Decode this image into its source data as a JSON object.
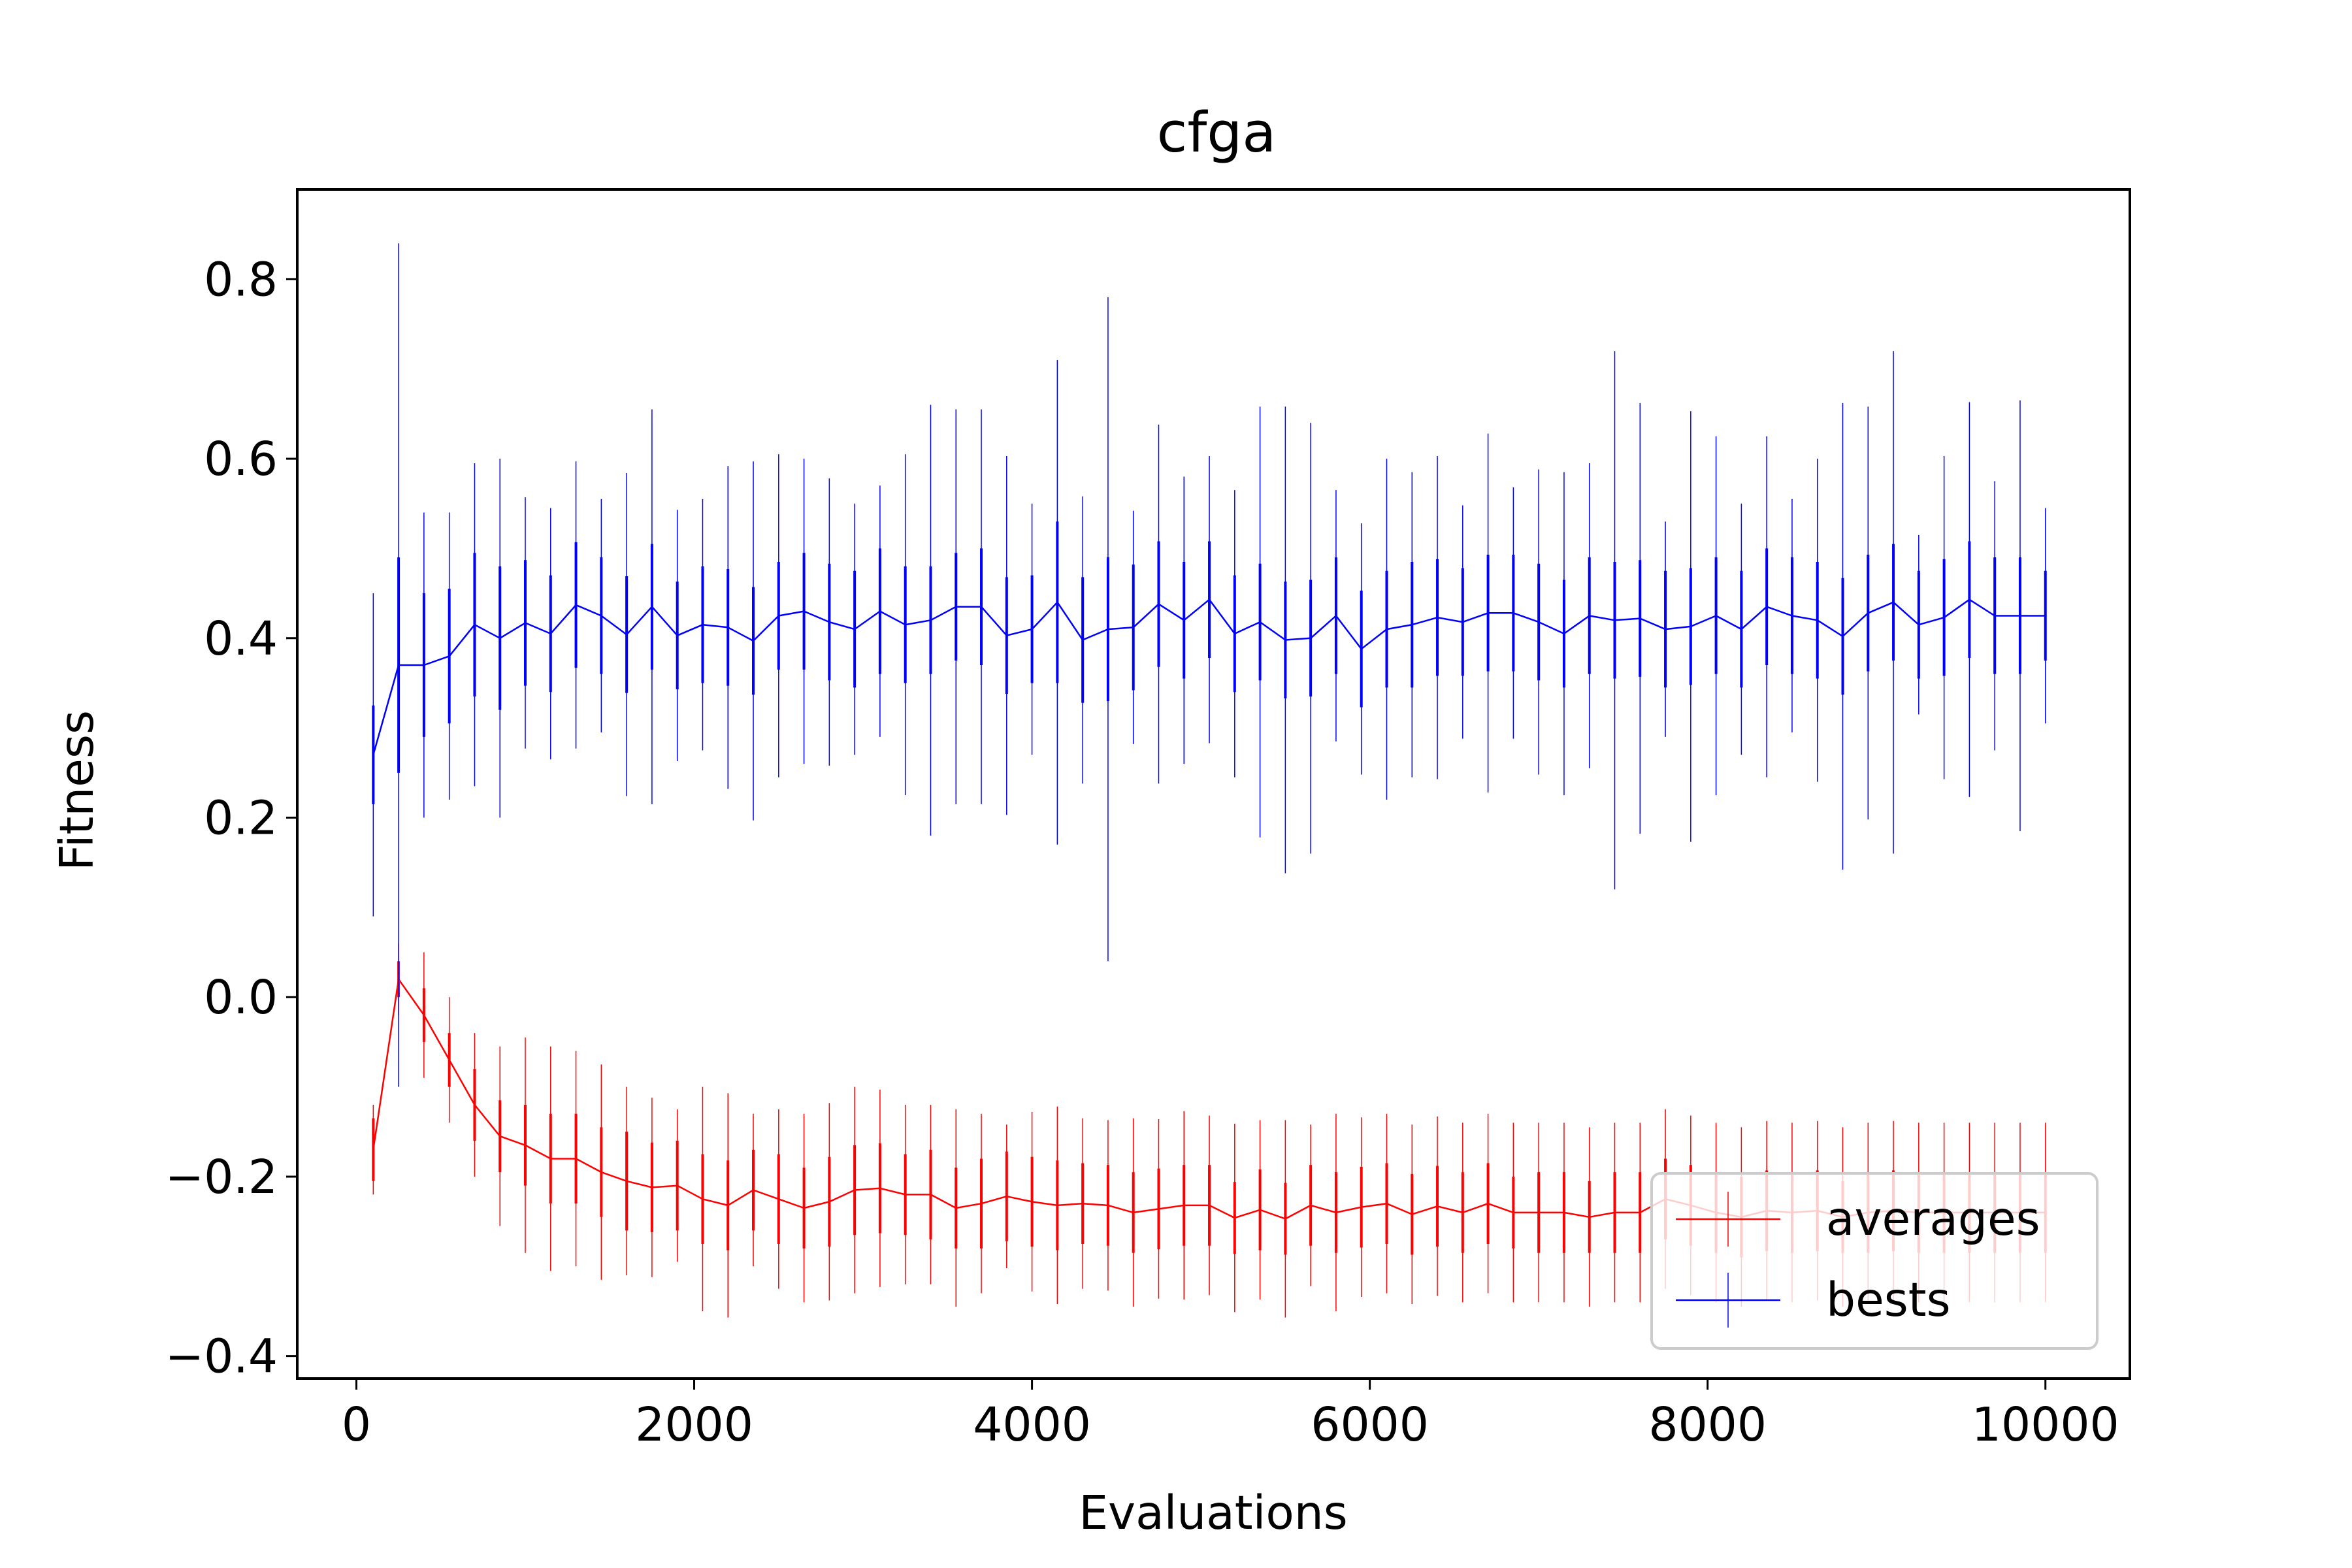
{
  "chart_data": {
    "type": "line",
    "title": "cfga",
    "xlabel": "Evaluations",
    "ylabel": "Fitness",
    "xlim": [
      -350,
      10500
    ],
    "ylim": [
      -0.425,
      0.9
    ],
    "xticks": [
      0,
      2000,
      4000,
      6000,
      8000,
      10000
    ],
    "xtick_labels": [
      "0",
      "2000",
      "4000",
      "6000",
      "8000",
      "10000"
    ],
    "yticks": [
      -0.4,
      -0.2,
      0.0,
      0.2,
      0.4,
      0.6,
      0.8
    ],
    "ytick_labels": [
      "−0.4",
      "−0.2",
      "0.0",
      "0.2",
      "0.4",
      "0.6",
      "0.8"
    ],
    "grid": false,
    "legend": "lower-right",
    "error_bars": true,
    "series": [
      {
        "name": "averages",
        "color": "#ff0000",
        "x": [
          100,
          250,
          400,
          550,
          700,
          850,
          1000,
          1150,
          1300,
          1450,
          1600,
          1750,
          1900,
          2050,
          2200,
          2350,
          2500,
          2650,
          2800,
          2950,
          3100,
          3250,
          3400,
          3550,
          3700,
          3850,
          4000,
          4150,
          4300,
          4450,
          4600,
          4750,
          4900,
          5050,
          5200,
          5350,
          5500,
          5650,
          5800,
          5950,
          6100,
          6250,
          6400,
          6550,
          6700,
          6850,
          7000,
          7150,
          7300,
          7450,
          7600,
          7750,
          7900,
          8050,
          8200,
          8350,
          8500,
          8650,
          8800,
          8950,
          9100,
          9250,
          9400,
          9550,
          9700,
          9850,
          10000
        ],
        "values": [
          -0.17,
          0.02,
          -0.02,
          -0.07,
          -0.12,
          -0.155,
          -0.165,
          -0.18,
          -0.18,
          -0.195,
          -0.205,
          -0.212,
          -0.21,
          -0.225,
          -0.232,
          -0.215,
          -0.225,
          -0.235,
          -0.228,
          -0.215,
          -0.213,
          -0.22,
          -0.22,
          -0.235,
          -0.23,
          -0.222,
          -0.228,
          -0.232,
          -0.23,
          -0.232,
          -0.24,
          -0.236,
          -0.232,
          -0.232,
          -0.246,
          -0.237,
          -0.247,
          -0.232,
          -0.24,
          -0.234,
          -0.23,
          -0.242,
          -0.233,
          -0.24,
          -0.23,
          -0.24,
          -0.24,
          -0.24,
          -0.245,
          -0.24,
          -0.24,
          -0.225,
          -0.232,
          -0.24,
          -0.245,
          -0.238,
          -0.24,
          -0.238,
          -0.245,
          -0.24,
          -0.238,
          -0.24,
          -0.24,
          -0.24,
          -0.24,
          -0.24,
          -0.24
        ],
        "err": [
          0.035,
          0.02,
          0.03,
          0.03,
          0.04,
          0.04,
          0.045,
          0.05,
          0.05,
          0.05,
          0.055,
          0.05,
          0.05,
          0.05,
          0.05,
          0.045,
          0.05,
          0.045,
          0.05,
          0.05,
          0.05,
          0.045,
          0.05,
          0.045,
          0.05,
          0.05,
          0.05,
          0.05,
          0.045,
          0.045,
          0.045,
          0.045,
          0.045,
          0.045,
          0.04,
          0.045,
          0.04,
          0.045,
          0.045,
          0.045,
          0.045,
          0.045,
          0.045,
          0.045,
          0.045,
          0.04,
          0.045,
          0.045,
          0.04,
          0.045,
          0.045,
          0.045,
          0.045,
          0.045,
          0.045,
          0.045,
          0.045,
          0.045,
          0.04,
          0.045,
          0.045,
          0.045,
          0.045,
          0.045,
          0.045,
          0.045,
          0.045
        ],
        "range": [
          0.05,
          0.04,
          0.07,
          0.07,
          0.08,
          0.1,
          0.12,
          0.125,
          0.12,
          0.12,
          0.105,
          0.1,
          0.085,
          0.125,
          0.125,
          0.085,
          0.1,
          0.105,
          0.11,
          0.115,
          0.11,
          0.1,
          0.1,
          0.11,
          0.1,
          0.08,
          0.1,
          0.11,
          0.095,
          0.095,
          0.105,
          0.1,
          0.105,
          0.1,
          0.105,
          0.1,
          0.11,
          0.09,
          0.11,
          0.1,
          0.1,
          0.1,
          0.1,
          0.1,
          0.1,
          0.1,
          0.1,
          0.1,
          0.1,
          0.1,
          0.1,
          0.1,
          0.1,
          0.1,
          0.1,
          0.1,
          0.1,
          0.1,
          0.1,
          0.1,
          0.1,
          0.1,
          0.1,
          0.1,
          0.1,
          0.1,
          0.1
        ]
      },
      {
        "name": "bests",
        "color": "#0000ff",
        "x": [
          100,
          250,
          400,
          550,
          700,
          850,
          1000,
          1150,
          1300,
          1450,
          1600,
          1750,
          1900,
          2050,
          2200,
          2350,
          2500,
          2650,
          2800,
          2950,
          3100,
          3250,
          3400,
          3550,
          3700,
          3850,
          4000,
          4150,
          4300,
          4450,
          4600,
          4750,
          4900,
          5050,
          5200,
          5350,
          5500,
          5650,
          5800,
          5950,
          6100,
          6250,
          6400,
          6550,
          6700,
          6850,
          7000,
          7150,
          7300,
          7450,
          7600,
          7750,
          7900,
          8050,
          8200,
          8350,
          8500,
          8650,
          8800,
          8950,
          9100,
          9250,
          9400,
          9550,
          9700,
          9850,
          10000
        ],
        "values": [
          0.27,
          0.37,
          0.37,
          0.38,
          0.415,
          0.4,
          0.417,
          0.405,
          0.437,
          0.425,
          0.404,
          0.435,
          0.403,
          0.415,
          0.412,
          0.397,
          0.425,
          0.43,
          0.418,
          0.41,
          0.43,
          0.415,
          0.42,
          0.435,
          0.435,
          0.403,
          0.41,
          0.44,
          0.398,
          0.41,
          0.412,
          0.438,
          0.42,
          0.443,
          0.405,
          0.418,
          0.398,
          0.4,
          0.425,
          0.388,
          0.41,
          0.415,
          0.423,
          0.418,
          0.428,
          0.428,
          0.418,
          0.405,
          0.425,
          0.42,
          0.422,
          0.41,
          0.413,
          0.425,
          0.41,
          0.435,
          0.425,
          0.42,
          0.402,
          0.428,
          0.44,
          0.415,
          0.423,
          0.443,
          0.425,
          0.425,
          0.425
        ],
        "err": [
          0.055,
          0.12,
          0.08,
          0.075,
          0.08,
          0.08,
          0.07,
          0.065,
          0.07,
          0.065,
          0.065,
          0.07,
          0.06,
          0.065,
          0.065,
          0.06,
          0.06,
          0.065,
          0.065,
          0.065,
          0.07,
          0.065,
          0.06,
          0.06,
          0.065,
          0.065,
          0.06,
          0.09,
          0.07,
          0.08,
          0.07,
          0.07,
          0.065,
          0.065,
          0.065,
          0.065,
          0.065,
          0.065,
          0.065,
          0.065,
          0.065,
          0.07,
          0.065,
          0.06,
          0.065,
          0.065,
          0.065,
          0.06,
          0.065,
          0.065,
          0.065,
          0.065,
          0.065,
          0.065,
          0.065,
          0.065,
          0.065,
          0.065,
          0.065,
          0.065,
          0.065,
          0.06,
          0.065,
          0.065,
          0.065,
          0.065,
          0.05
        ],
        "range": [
          0.18,
          0.47,
          0.17,
          0.16,
          0.18,
          0.2,
          0.14,
          0.14,
          0.16,
          0.13,
          0.18,
          0.22,
          0.14,
          0.14,
          0.18,
          0.2,
          0.18,
          0.17,
          0.16,
          0.14,
          0.14,
          0.19,
          0.24,
          0.22,
          0.22,
          0.2,
          0.14,
          0.27,
          0.16,
          0.37,
          0.13,
          0.2,
          0.16,
          0.16,
          0.16,
          0.24,
          0.26,
          0.24,
          0.14,
          0.14,
          0.19,
          0.17,
          0.18,
          0.13,
          0.2,
          0.14,
          0.17,
          0.18,
          0.17,
          0.3,
          0.24,
          0.12,
          0.24,
          0.2,
          0.14,
          0.19,
          0.13,
          0.18,
          0.26,
          0.23,
          0.28,
          0.1,
          0.18,
          0.22,
          0.15,
          0.24,
          0.12
        ]
      }
    ]
  }
}
